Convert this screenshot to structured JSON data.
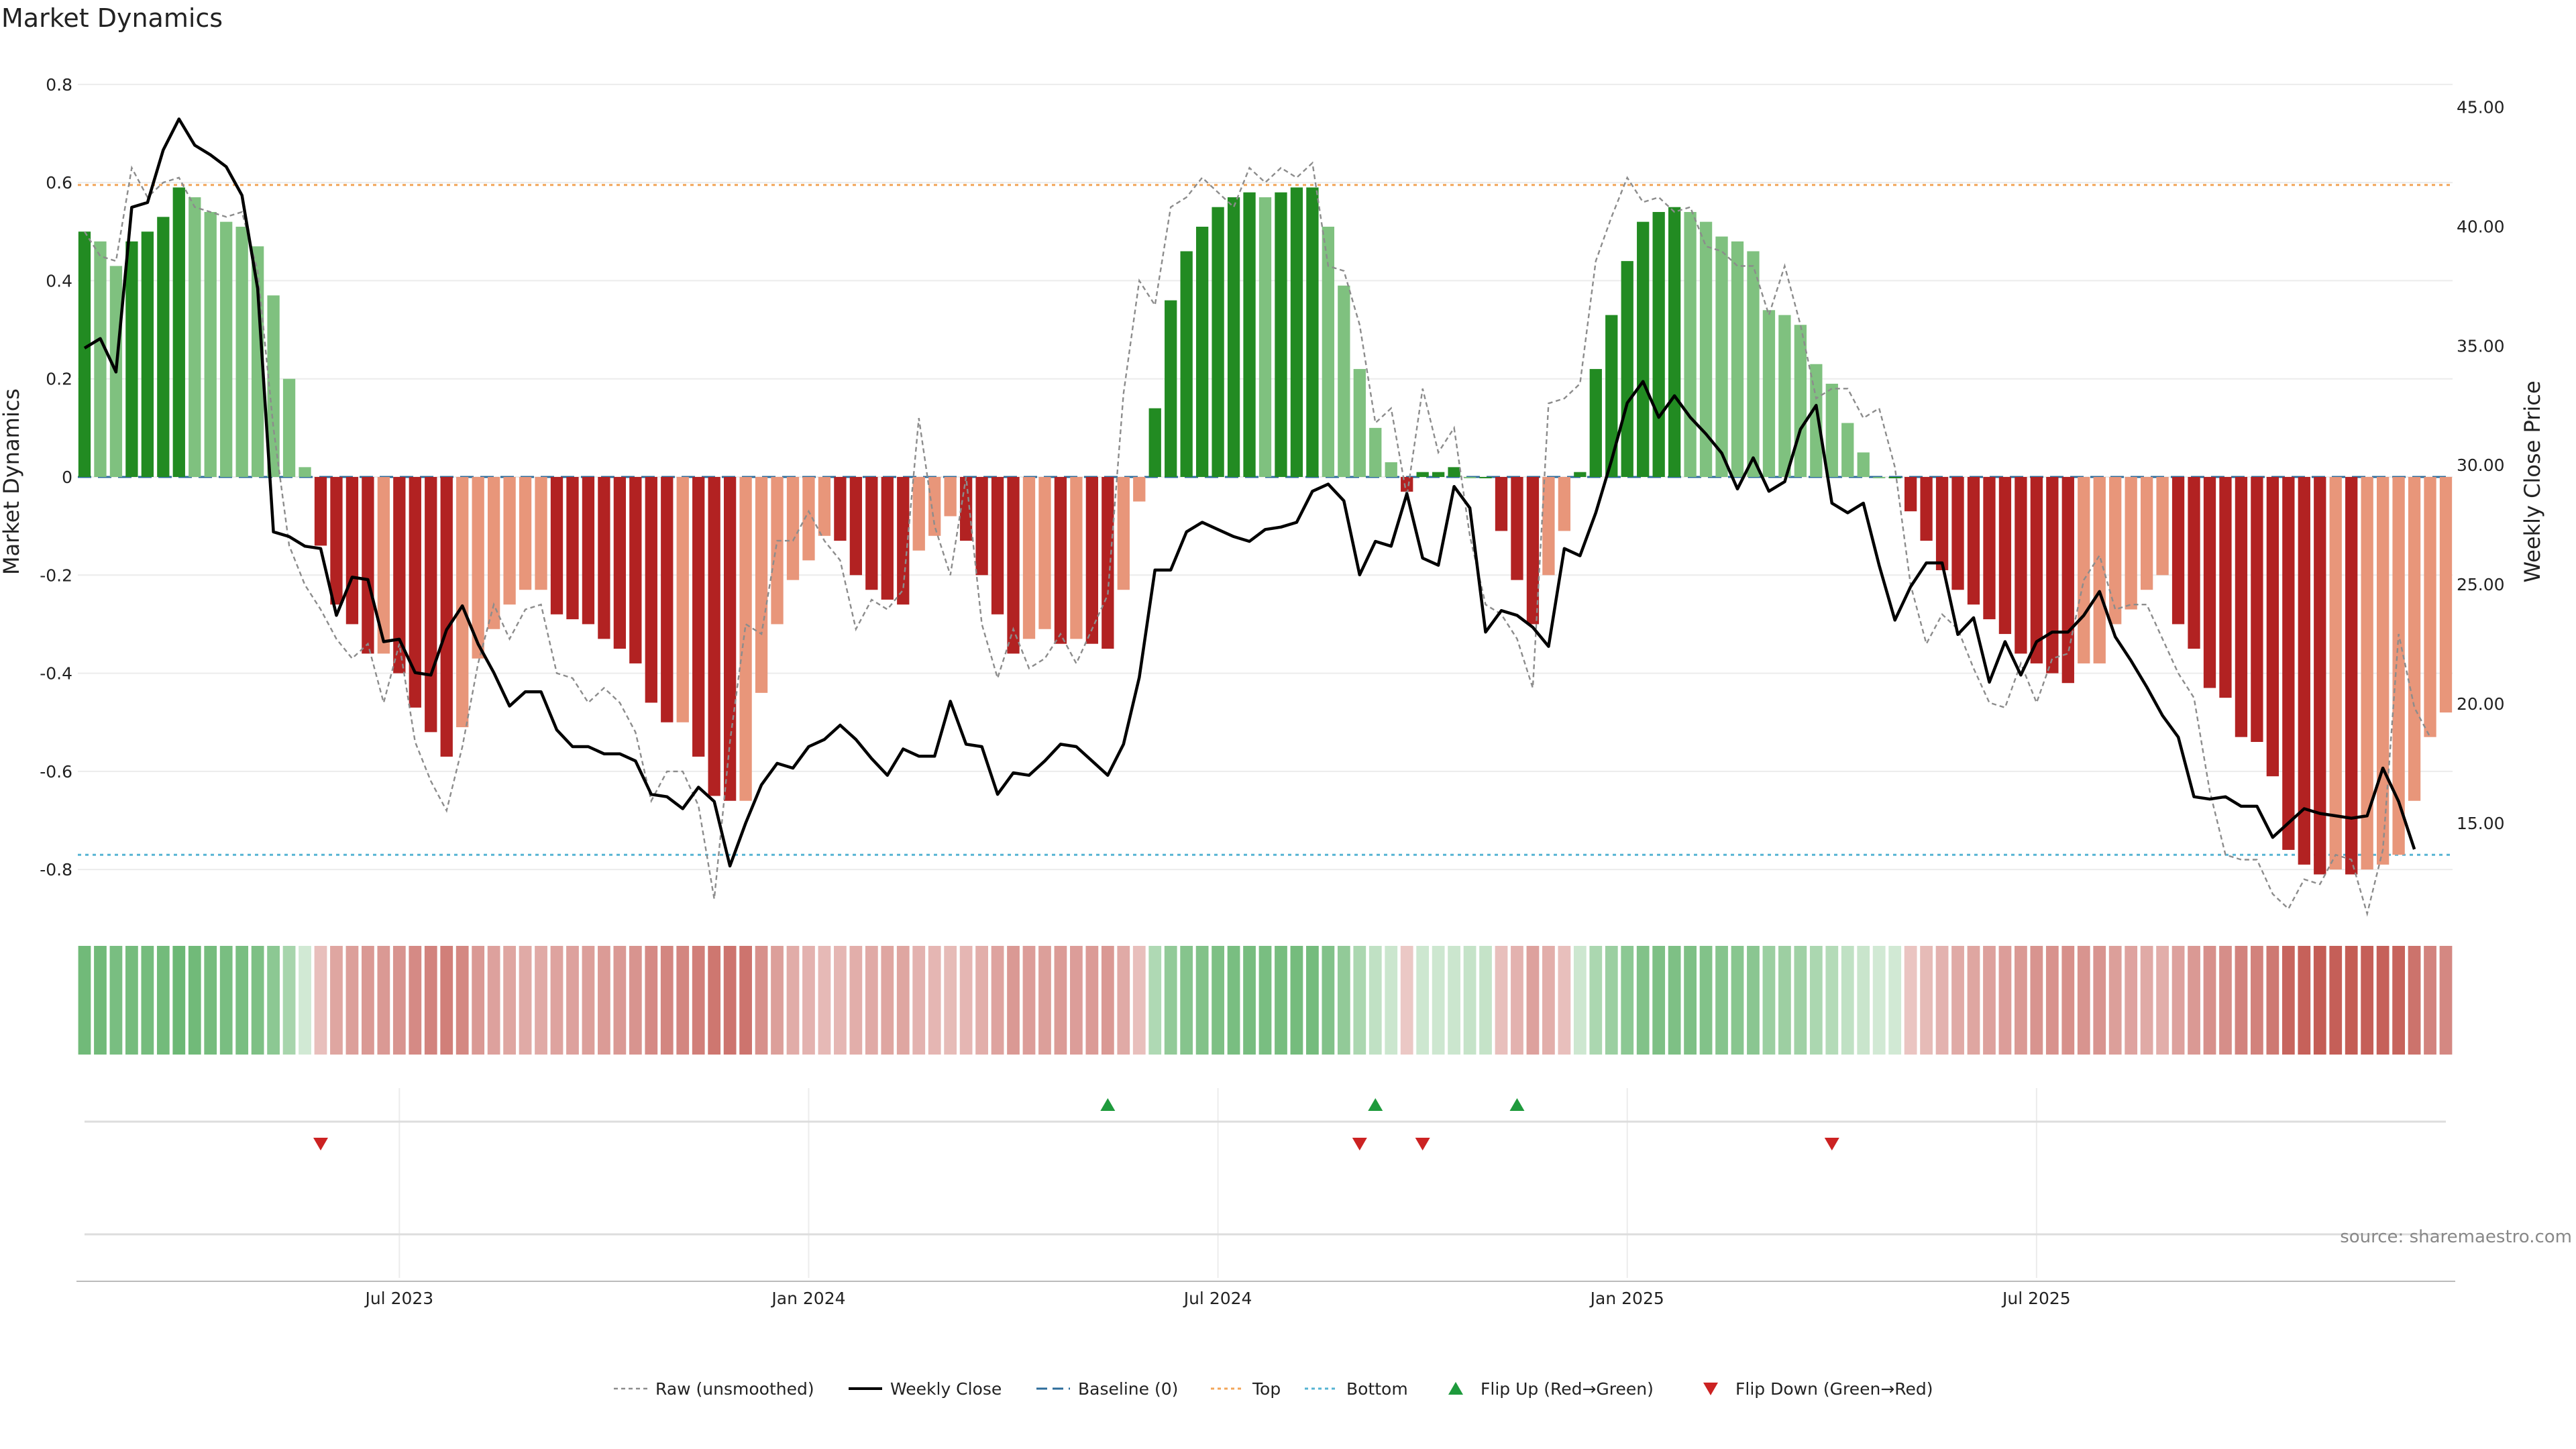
{
  "chart_data": {
    "type": "bar",
    "title": "Market Dynamics",
    "ylabel_left": "Market Dynamics",
    "ylabel_right": "Weekly Close Price",
    "source": "source: sharemaestro.com",
    "left_ylim": [
      -0.89,
      0.89
    ],
    "right_ylim": [
      11.2,
      47.8
    ],
    "left_ticks": [
      {
        "v": 0.8,
        "label": "0.8"
      },
      {
        "v": 0.6,
        "label": "0.6"
      },
      {
        "v": 0.4,
        "label": "0.4"
      },
      {
        "v": 0.2,
        "label": "0.2"
      },
      {
        "v": 0,
        "label": "0"
      },
      {
        "v": -0.2,
        "label": "-0.2"
      },
      {
        "v": -0.4,
        "label": "-0.4"
      },
      {
        "v": -0.6,
        "label": "-0.6"
      },
      {
        "v": -0.8,
        "label": "-0.8"
      }
    ],
    "right_ticks": [
      {
        "v": 45,
        "label": "45.00"
      },
      {
        "v": 40,
        "label": "40.00"
      },
      {
        "v": 35,
        "label": "35.00"
      },
      {
        "v": 30,
        "label": "30.00"
      },
      {
        "v": 25,
        "label": "25.00"
      },
      {
        "v": 20,
        "label": "20.00"
      },
      {
        "v": 15,
        "label": "15.00"
      }
    ],
    "x_ticks": [
      {
        "i": 20,
        "label": "Jul 2023"
      },
      {
        "i": 46,
        "label": "Jan 2024"
      },
      {
        "i": 72,
        "label": "Jul 2024"
      },
      {
        "i": 98,
        "label": "Jan 2025"
      },
      {
        "i": 124,
        "label": "Jul 2025"
      }
    ],
    "top_level": 0.595,
    "bottom_level": -0.77,
    "colors": {
      "strong_green": "#228b22",
      "light_green": "#7fc17f",
      "strong_red": "#b22222",
      "light_red": "#e8967a",
      "close": "#000000",
      "raw": "#8c8c8c",
      "baseline": "#2e6c9b",
      "top": "#f2a65a",
      "bottom": "#56b4d3",
      "flip_up": "#1e9a3c",
      "flip_down": "#cc2222"
    },
    "series": [
      {
        "name": "Market Dynamics (smoothed)",
        "values": [
          0.5,
          0.48,
          0.43,
          0.48,
          0.5,
          0.53,
          0.59,
          0.57,
          0.54,
          0.52,
          0.51,
          0.47,
          0.37,
          0.2,
          0.02,
          -0.14,
          -0.26,
          -0.3,
          -0.36,
          -0.36,
          -0.4,
          -0.47,
          -0.52,
          -0.57,
          -0.51,
          -0.37,
          -0.31,
          -0.26,
          -0.23,
          -0.23,
          -0.28,
          -0.29,
          -0.3,
          -0.33,
          -0.35,
          -0.38,
          -0.46,
          -0.5,
          -0.5,
          -0.57,
          -0.65,
          -0.66,
          -0.66,
          -0.44,
          -0.3,
          -0.21,
          -0.17,
          -0.12,
          -0.13,
          -0.2,
          -0.23,
          -0.25,
          -0.26,
          -0.15,
          -0.12,
          -0.08,
          -0.13,
          -0.2,
          -0.28,
          -0.36,
          -0.33,
          -0.31,
          -0.34,
          -0.33,
          -0.34,
          -0.35,
          -0.23,
          -0.05,
          0.14,
          0.36,
          0.46,
          0.51,
          0.55,
          0.57,
          0.58,
          0.57,
          0.58,
          0.59,
          0.59,
          0.51,
          0.39,
          0.22,
          0.1,
          0.03,
          -0.03,
          0.01,
          0.01,
          0.02,
          0.0,
          0.0,
          -0.11,
          -0.21,
          -0.3,
          -0.2,
          -0.11,
          0.01,
          0.22,
          0.33,
          0.44,
          0.52,
          0.54,
          0.55,
          0.54,
          0.52,
          0.49,
          0.48,
          0.46,
          0.34,
          0.33,
          0.31,
          0.23,
          0.19,
          0.11,
          0.05,
          0.0,
          0.0,
          -0.07,
          -0.13,
          -0.19,
          -0.23,
          -0.26,
          -0.29,
          -0.32,
          -0.36,
          -0.38,
          -0.4,
          -0.42,
          -0.38,
          -0.38,
          -0.3,
          -0.27,
          -0.23,
          -0.2,
          -0.3,
          -0.35,
          -0.43,
          -0.45,
          -0.53,
          -0.54,
          -0.61,
          -0.76,
          -0.79,
          -0.81,
          -0.8,
          -0.81,
          -0.8,
          -0.79,
          -0.77,
          -0.66,
          -0.53,
          -0.48
        ]
      },
      {
        "name": "Raw (unsmoothed)",
        "values": [
          0.5,
          0.45,
          0.44,
          0.63,
          0.57,
          0.6,
          0.61,
          0.55,
          0.54,
          0.53,
          0.54,
          0.42,
          0.1,
          -0.14,
          -0.22,
          -0.27,
          -0.33,
          -0.37,
          -0.34,
          -0.46,
          -0.34,
          -0.54,
          -0.62,
          -0.68,
          -0.55,
          -0.38,
          -0.26,
          -0.33,
          -0.27,
          -0.26,
          -0.4,
          -0.41,
          -0.46,
          -0.43,
          -0.46,
          -0.52,
          -0.66,
          -0.6,
          -0.6,
          -0.67,
          -0.86,
          -0.54,
          -0.3,
          -0.32,
          -0.13,
          -0.13,
          -0.07,
          -0.13,
          -0.17,
          -0.31,
          -0.25,
          -0.27,
          -0.23,
          0.12,
          -0.1,
          -0.2,
          0.0,
          -0.3,
          -0.41,
          -0.31,
          -0.39,
          -0.37,
          -0.32,
          -0.38,
          -0.31,
          -0.24,
          0.17,
          0.4,
          0.35,
          0.55,
          0.57,
          0.61,
          0.58,
          0.55,
          0.63,
          0.6,
          0.63,
          0.61,
          0.64,
          0.43,
          0.42,
          0.31,
          0.11,
          0.14,
          -0.04,
          0.18,
          0.05,
          0.1,
          -0.12,
          -0.26,
          -0.28,
          -0.33,
          -0.43,
          0.15,
          0.16,
          0.19,
          0.44,
          0.53,
          0.61,
          0.56,
          0.57,
          0.54,
          0.55,
          0.47,
          0.46,
          0.43,
          0.43,
          0.33,
          0.43,
          0.31,
          0.16,
          0.18,
          0.18,
          0.12,
          0.14,
          0.02,
          -0.22,
          -0.34,
          -0.28,
          -0.31,
          -0.39,
          -0.46,
          -0.47,
          -0.38,
          -0.46,
          -0.37,
          -0.36,
          -0.21,
          -0.16,
          -0.27,
          -0.26,
          -0.26,
          -0.33,
          -0.4,
          -0.45,
          -0.64,
          -0.77,
          -0.78,
          -0.78,
          -0.85,
          -0.88,
          -0.82,
          -0.83,
          -0.77,
          -0.78,
          -0.89,
          -0.76,
          -0.32,
          -0.47,
          -0.53
        ]
      },
      {
        "name": "Weekly Close",
        "values": [
          34.9,
          35.3,
          33.9,
          40.8,
          41.0,
          43.2,
          44.5,
          43.4,
          43.0,
          42.5,
          41.3,
          37.4,
          27.2,
          27.0,
          26.6,
          26.5,
          23.7,
          25.3,
          25.2,
          22.6,
          22.7,
          21.3,
          21.2,
          23.1,
          24.1,
          22.5,
          21.3,
          19.9,
          20.5,
          20.5,
          18.9,
          18.2,
          18.2,
          17.9,
          17.9,
          17.6,
          16.2,
          16.1,
          15.6,
          16.5,
          15.9,
          13.2,
          15.0,
          16.6,
          17.5,
          17.3,
          18.2,
          18.5,
          19.1,
          18.5,
          17.7,
          17.0,
          18.1,
          17.8,
          17.8,
          20.1,
          18.3,
          18.2,
          16.2,
          17.1,
          17.0,
          17.6,
          18.3,
          18.2,
          17.6,
          17.0,
          18.3,
          21.1,
          25.6,
          25.6,
          27.2,
          27.6,
          27.3,
          27.0,
          26.8,
          27.3,
          27.4,
          27.6,
          28.9,
          29.2,
          28.5,
          25.4,
          26.8,
          26.6,
          28.8,
          26.1,
          25.8,
          29.1,
          28.2,
          23.0,
          23.9,
          23.7,
          23.2,
          22.4,
          26.5,
          26.2,
          28.0,
          30.2,
          32.6,
          33.5,
          32.0,
          32.9,
          32.0,
          31.3,
          30.5,
          29.0,
          30.3,
          28.9,
          29.3,
          31.5,
          32.5,
          28.4,
          28.0,
          28.4,
          25.8,
          23.5,
          24.9,
          25.9,
          25.9,
          22.9,
          23.6,
          20.9,
          22.6,
          21.2,
          22.6,
          23.0,
          23.0,
          23.7,
          24.7,
          22.8,
          21.8,
          20.7,
          19.5,
          18.6,
          16.1,
          16.0,
          16.1,
          15.7,
          15.7,
          14.4,
          15.0,
          15.6,
          15.4,
          15.3,
          15.2,
          15.3,
          17.3,
          15.9,
          13.9
        ]
      }
    ],
    "heat_alphas": [
      0.68,
      0.68,
      0.64,
      0.66,
      0.66,
      0.67,
      0.7,
      0.68,
      0.66,
      0.64,
      0.64,
      0.62,
      0.55,
      0.42,
      0.22,
      0.3,
      0.42,
      0.45,
      0.48,
      0.48,
      0.5,
      0.55,
      0.58,
      0.6,
      0.56,
      0.48,
      0.44,
      0.42,
      0.4,
      0.4,
      0.43,
      0.44,
      0.45,
      0.47,
      0.48,
      0.5,
      0.55,
      0.57,
      0.57,
      0.6,
      0.64,
      0.65,
      0.65,
      0.52,
      0.45,
      0.39,
      0.36,
      0.33,
      0.34,
      0.38,
      0.4,
      0.42,
      0.42,
      0.36,
      0.34,
      0.32,
      0.34,
      0.38,
      0.43,
      0.48,
      0.46,
      0.45,
      0.47,
      0.46,
      0.47,
      0.48,
      0.4,
      0.3,
      0.38,
      0.52,
      0.58,
      0.6,
      0.62,
      0.64,
      0.65,
      0.64,
      0.65,
      0.66,
      0.66,
      0.6,
      0.52,
      0.4,
      0.3,
      0.25,
      0.26,
      0.24,
      0.24,
      0.25,
      0.28,
      0.28,
      0.3,
      0.36,
      0.44,
      0.38,
      0.3,
      0.24,
      0.4,
      0.48,
      0.55,
      0.6,
      0.62,
      0.62,
      0.62,
      0.6,
      0.58,
      0.57,
      0.56,
      0.48,
      0.47,
      0.46,
      0.4,
      0.36,
      0.3,
      0.26,
      0.22,
      0.22,
      0.28,
      0.32,
      0.36,
      0.4,
      0.42,
      0.44,
      0.46,
      0.48,
      0.5,
      0.51,
      0.52,
      0.5,
      0.5,
      0.45,
      0.43,
      0.4,
      0.38,
      0.44,
      0.48,
      0.52,
      0.53,
      0.58,
      0.59,
      0.63,
      0.72,
      0.74,
      0.76,
      0.75,
      0.76,
      0.75,
      0.74,
      0.73,
      0.66,
      0.58,
      0.56
    ],
    "flip_up_indices": [
      65,
      82,
      91
    ],
    "flip_down_indices": [
      15,
      81,
      85,
      111
    ],
    "legend": [
      {
        "key": "raw",
        "label": "Raw (unsmoothed)"
      },
      {
        "key": "close",
        "label": "Weekly Close"
      },
      {
        "key": "baseline",
        "label": "Baseline (0)"
      },
      {
        "key": "top",
        "label": "Top"
      },
      {
        "key": "bottom",
        "label": "Bottom"
      },
      {
        "key": "flip_up",
        "label": "Flip Up (Red→Green)"
      },
      {
        "key": "flip_down",
        "label": "Flip Down (Green→Red)"
      }
    ]
  }
}
